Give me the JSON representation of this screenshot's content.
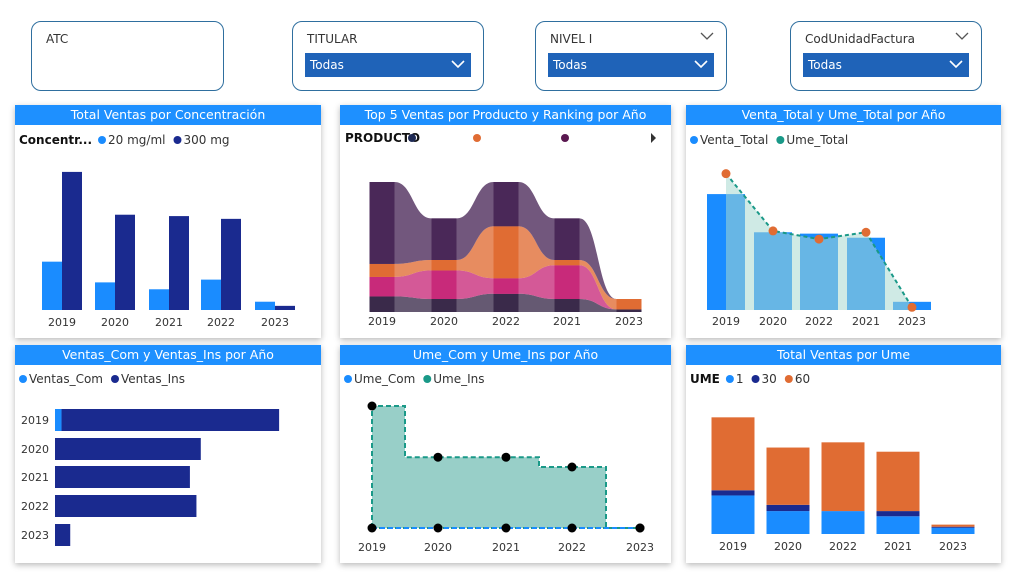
{
  "colors": {
    "accent": "#1e90ff",
    "dropdown": "#1f63b8",
    "navy": "#1a2a8f",
    "blue": "#1a8cff",
    "teal": "#1a9988",
    "orange": "#e06c33"
  },
  "slicers": [
    {
      "title": "ATC",
      "has_dropdown": false
    },
    {
      "title": "TITULAR",
      "value": "Todas",
      "has_dropdown": true,
      "chevron_in_header": false
    },
    {
      "title": "NIVEL I",
      "value": "Todas",
      "has_dropdown": true,
      "chevron_in_header": true
    },
    {
      "title": "CodUnidadFactura",
      "value": "Todas",
      "has_dropdown": true,
      "chevron_in_header": true
    }
  ],
  "charts": {
    "concentracion": {
      "title": "Total Ventas por Concentración",
      "legend_title": "Concentr...",
      "chart_data": {
        "type": "bar",
        "categories": [
          "2019",
          "2020",
          "2021",
          "2022",
          "2023"
        ],
        "series": [
          {
            "name": "20 mg/ml",
            "color": "#1a8cff",
            "values": [
              35,
              20,
              15,
              22,
              6
            ]
          },
          {
            "name": "300 mg",
            "color": "#1a2a8f",
            "values": [
              100,
              69,
              68,
              66,
              3
            ]
          }
        ],
        "ylim": [
          0,
          105
        ]
      }
    },
    "top5": {
      "title": "Top 5 Ventas por Producto y Ranking por Año",
      "legend_title": "PRODUCTO",
      "legend_colors": [
        "#1e2a55",
        "#e06c33",
        "#5a1850"
      ],
      "chart_data": {
        "type": "area",
        "categories": [
          "2019",
          "2020",
          "2022",
          "2021",
          "2023"
        ],
        "series": [
          {
            "color": "#3a2a4a",
            "values": [
              12,
              10,
              14,
              10,
              2
            ]
          },
          {
            "color": "#c82a7a",
            "values": [
              15,
              22,
              12,
              26,
              0
            ]
          },
          {
            "color": "#e06c33",
            "values": [
              10,
              8,
              40,
              4,
              8
            ]
          },
          {
            "color": "#4a2858",
            "values": [
              63,
              32,
              34,
              32,
              0
            ]
          }
        ],
        "ylim": [
          0,
          100
        ]
      }
    },
    "venta_ume": {
      "title": "Venta_Total y Ume_Total por Año",
      "chart_data": {
        "type": "bar",
        "categories": [
          "2019",
          "2020",
          "2022",
          "2021",
          "2023"
        ],
        "series": [
          {
            "name": "Venta_Total",
            "color": "#1a8cff",
            "values": [
              85,
              57,
              56,
              53,
              6
            ]
          },
          {
            "name": "Ume_Total",
            "color": "#1a9988",
            "values": [
              100,
              58,
              52,
              57,
              2
            ]
          }
        ],
        "ylim": [
          0,
          110
        ]
      }
    },
    "com_ins": {
      "title": "Ventas_Com y Ventas_Ins por Año",
      "chart_data": {
        "type": "bar",
        "categories": [
          "2019",
          "2020",
          "2021",
          "2022",
          "2023"
        ],
        "series": [
          {
            "name": "Ventas_Com",
            "color": "#1a8cff",
            "values": [
              3,
              0,
              0,
              0,
              0
            ]
          },
          {
            "name": "Ventas_Ins",
            "color": "#1a2a8f",
            "values": [
              100,
              67,
              62,
              65,
              7
            ]
          }
        ],
        "xlim": [
          0,
          108
        ]
      }
    },
    "ume_com_ins": {
      "title": "Ume_Com y Ume_Ins por Año",
      "chart_data": {
        "type": "area",
        "categories": [
          "2019",
          "2020",
          "2021",
          "2022",
          "2023"
        ],
        "series": [
          {
            "name": "Ume_Com",
            "color": "#1a8cff",
            "values": [
              0,
              0,
              0,
              0,
              0
            ]
          },
          {
            "name": "Ume_Ins",
            "color": "#1a9988",
            "values": [
              100,
              58,
              58,
              50,
              0
            ]
          }
        ],
        "ylim": [
          0,
          100
        ]
      }
    },
    "ume": {
      "title": "Total Ventas por Ume",
      "legend_title": "UME",
      "chart_data": {
        "type": "bar",
        "categories": [
          "2019",
          "2020",
          "2022",
          "2021",
          "2023"
        ],
        "series": [
          {
            "name": "1",
            "color": "#1a8cff",
            "values": [
              37,
              22,
              22,
              17,
              6
            ]
          },
          {
            "name": "30",
            "color": "#1a2a8f",
            "values": [
              5,
              6,
              0,
              5,
              1
            ]
          },
          {
            "name": "60",
            "color": "#e06c33",
            "values": [
              70,
              55,
              66,
              57,
              2
            ]
          }
        ],
        "ylim": [
          0,
          120
        ]
      }
    }
  }
}
